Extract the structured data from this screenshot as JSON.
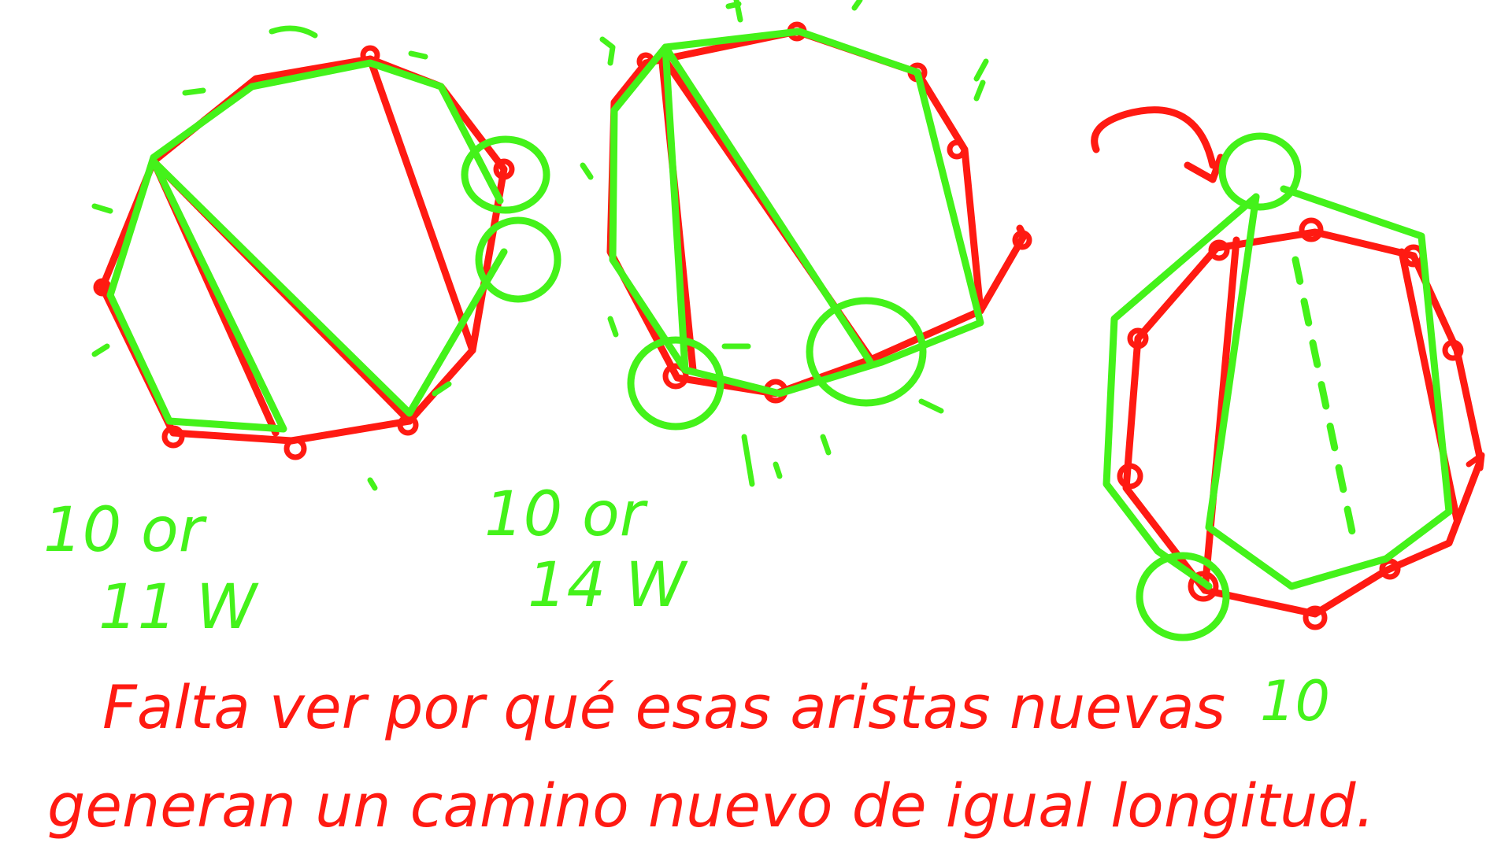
{
  "colors": {
    "red_ink": "#ff1a12",
    "green_ink": "#44f21a",
    "background": "#ffffff"
  },
  "diagram": {
    "figure_1_label_line1": "10 or",
    "figure_1_label_line2": "11 W",
    "figure_2_label_line1": "10 or",
    "figure_2_label_line2": "14 W",
    "figure_3_label": "10",
    "note_line1": "Falta ver por qué esas aristas nuevas",
    "note_line2": "generan un camino nuevo de igual longitud."
  }
}
